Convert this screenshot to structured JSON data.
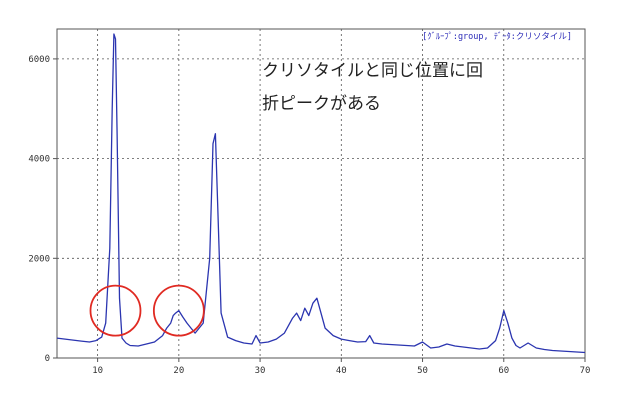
{
  "chart_data": {
    "type": "line",
    "title": "",
    "xlabel": "",
    "ylabel": "",
    "xlim": [
      5,
      70
    ],
    "ylim": [
      0,
      6600
    ],
    "grid": true,
    "x_ticks": [
      10,
      20,
      30,
      40,
      50,
      60,
      70
    ],
    "y_ticks": [
      0,
      2000,
      4000,
      6000
    ],
    "legend_text": "[ｸﾞﾙｰﾌﾟ:group, ﾃﾞｰﾀ:クリソタイル]",
    "legend_position": "top-right",
    "annotation_lines": [
      "クリソタイルと同じ位置に回",
      "折ピークがある"
    ],
    "circles": [
      {
        "x": 12.2,
        "y": 950
      },
      {
        "x": 20.0,
        "y": 950
      }
    ],
    "colors": {
      "line": "#2b35b0",
      "circle": "#e02a22",
      "grid": "#555555"
    },
    "series": [
      {
        "x": [
          5,
          6,
          7,
          8,
          9,
          9.8,
          10.5,
          11.0,
          11.5,
          11.8,
          12.0,
          12.2,
          12.4,
          12.7,
          13.0,
          13.5,
          14,
          15,
          16,
          17,
          18,
          18.5,
          19.0,
          19.3,
          19.6,
          20.0,
          20.5,
          21.0,
          21.5,
          22,
          23,
          23.8,
          24.2,
          24.5,
          24.8,
          25.2,
          26,
          27,
          28,
          29,
          29.5,
          30,
          31,
          32,
          33,
          34,
          34.5,
          35,
          35.5,
          36,
          36.5,
          37,
          37.5,
          38,
          39,
          40,
          41,
          42,
          43,
          43.5,
          44,
          45,
          46,
          47,
          48,
          49,
          50,
          51,
          52,
          53,
          54,
          55,
          56,
          57,
          58,
          59,
          59.5,
          60,
          60.5,
          61,
          61.5,
          62,
          63,
          64,
          65,
          66,
          67,
          68,
          69,
          70
        ],
        "values": [
          400,
          380,
          360,
          340,
          320,
          350,
          420,
          700,
          2200,
          5000,
          6500,
          6400,
          4500,
          1200,
          400,
          300,
          250,
          240,
          280,
          320,
          450,
          600,
          700,
          850,
          900,
          950,
          820,
          700,
          600,
          500,
          700,
          2000,
          4300,
          4500,
          3000,
          900,
          420,
          350,
          300,
          280,
          450,
          300,
          320,
          380,
          500,
          800,
          900,
          750,
          1000,
          850,
          1100,
          1200,
          900,
          600,
          450,
          380,
          350,
          320,
          330,
          450,
          300,
          280,
          270,
          260,
          250,
          240,
          320,
          200,
          220,
          280,
          240,
          220,
          200,
          180,
          200,
          350,
          600,
          950,
          700,
          400,
          250,
          200,
          300,
          200,
          170,
          150,
          140,
          130,
          120,
          110
        ]
      }
    ]
  }
}
